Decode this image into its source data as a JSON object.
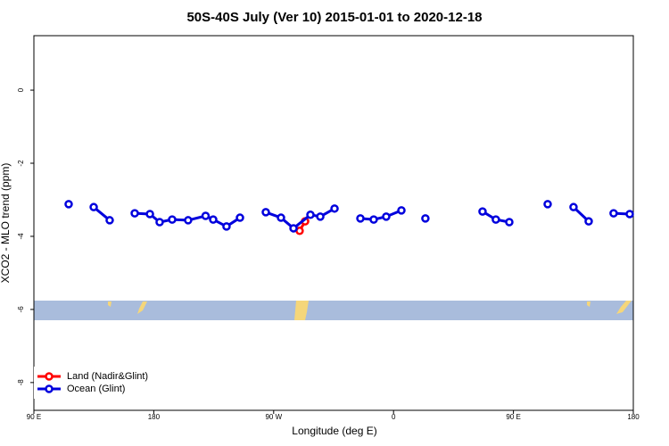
{
  "chart_data": {
    "type": "line",
    "title": "50S-40S July (Ver 10)   2015-01-01 to 2020-12-18",
    "x_label": "Longitude (deg E)",
    "y_label": "XCO2 - MLO trend (ppm)",
    "xlim": [
      90,
      540
    ],
    "xticks": [
      {
        "value": 90,
        "label": "90 E"
      },
      180,
      {
        "value": 270,
        "label": "90 W"
      },
      {
        "value": 360,
        "label": "0"
      },
      {
        "value": 450,
        "label": "90 E"
      },
      {
        "value": 540,
        "label": "180"
      }
    ],
    "ylim": [
      -8.76,
      1.49
    ],
    "yticks": [
      0,
      -2,
      -4,
      -6,
      -8
    ],
    "legend": "bottom-left",
    "series": [
      {
        "name": "Land (Nadir&Glint)",
        "color": "#ff0000",
        "x": [
          289.5,
          293.6
        ],
        "values": [
          -3.85,
          -3.59
        ]
      },
      {
        "name": "Ocean (Glint)",
        "color": "#0000dd",
        "x": [
          116.1,
          null,
          134.9,
          146.9,
          null,
          165.7,
          177.1,
          184.4,
          193.8,
          205.8,
          218.9,
          224.6,
          234.6,
          244.7,
          null,
          264.1,
          275.5,
          284.9,
          297.6,
          305.0,
          315.7,
          null,
          335.1,
          345.1,
          354.5,
          365.9,
          null,
          383.9,
          null,
          426.8,
          436.8,
          446.9,
          null,
          475.7,
          null,
          495.1,
          506.5,
          null,
          525.2,
          537.3
        ],
        "values": [
          -3.12,
          null,
          -3.2,
          -3.56,
          null,
          -3.37,
          -3.39,
          -3.61,
          -3.54,
          -3.56,
          -3.44,
          -3.54,
          -3.73,
          -3.49,
          null,
          -3.34,
          -3.49,
          -3.78,
          -3.41,
          -3.46,
          -3.24,
          null,
          -3.51,
          -3.54,
          -3.46,
          -3.29,
          null,
          -3.51,
          null,
          -3.32,
          -3.54,
          -3.61,
          null,
          -3.12,
          null,
          -3.2,
          -3.59,
          null,
          -3.37,
          -3.39
        ]
      }
    ]
  }
}
